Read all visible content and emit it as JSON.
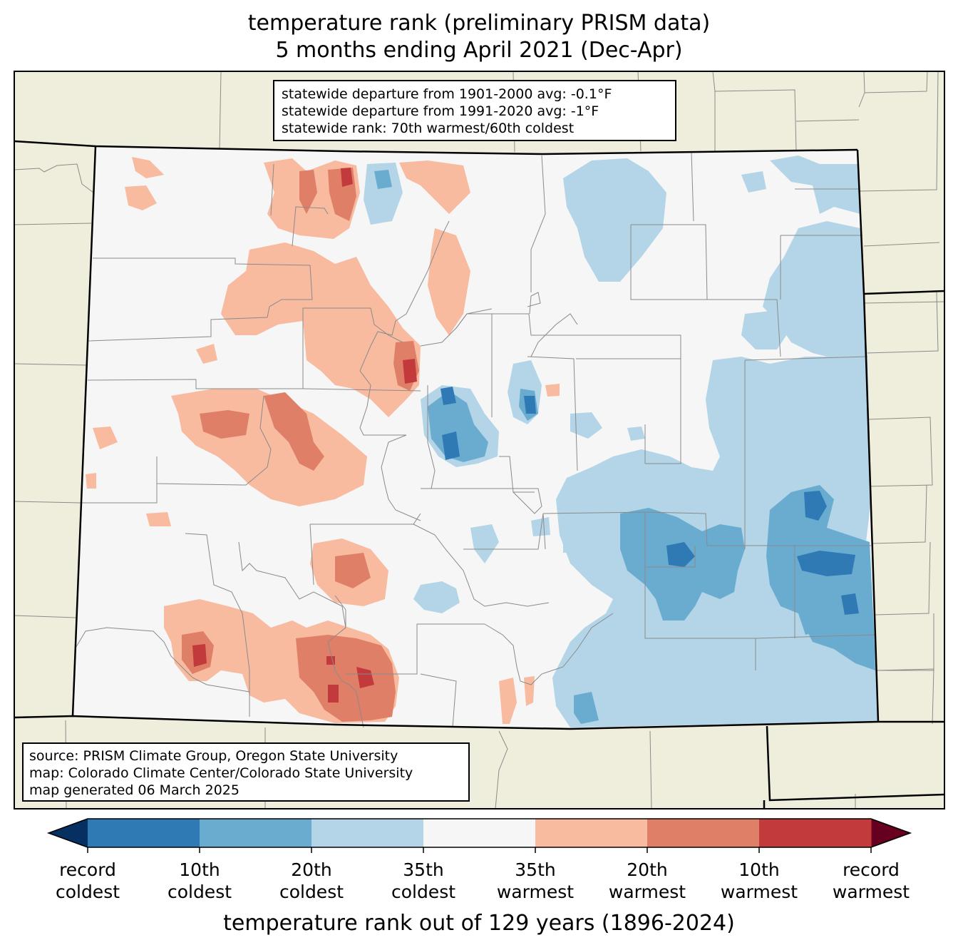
{
  "title": {
    "line1": "temperature rank (preliminary PRISM data)",
    "line2": "5 months ending April 2021 (Dec-Apr)"
  },
  "stats": {
    "line1": "statewide departure from 1901-2000 avg: -0.1°F",
    "line2": "statewide departure from 1991-2020 avg: -1°F",
    "line3": "statewide rank: 70th warmest/60th coldest"
  },
  "source": {
    "line1": "source: PRISM Climate Group, Oregon State University",
    "line2": "map: Colorado Climate Center/Colorado State University",
    "line3": "map generated 06 March 2025"
  },
  "colorbar": {
    "title": "temperature rank out of 129 years (1896-2024)",
    "under_color": "#053061",
    "over_color": "#67001f",
    "colors": [
      "#2f79b5",
      "#6aacd0",
      "#b3d5e7",
      "#f6f6f6",
      "#f8bba0",
      "#e07f67",
      "#c23a3c"
    ],
    "ticks": [
      {
        "line1": "record",
        "line2": "coldest"
      },
      {
        "line1": "10th",
        "line2": "coldest"
      },
      {
        "line1": "20th",
        "line2": "coldest"
      },
      {
        "line1": "35th",
        "line2": "coldest"
      },
      {
        "line1": "35th",
        "line2": "warmest"
      },
      {
        "line1": "20th",
        "line2": "warmest"
      },
      {
        "line1": "10th",
        "line2": "warmest"
      },
      {
        "line1": "record",
        "line2": "warmest"
      }
    ]
  },
  "map": {
    "land_color": "#efeedc",
    "state_fill": "#f6f6f6",
    "colors": {
      "cold_35": "#b3d5e7",
      "cold_20": "#6aacd0",
      "cold_10": "#2f79b5",
      "warm_35": "#f8bba0",
      "warm_20": "#e07f67",
      "warm_10": "#c23a3c"
    }
  }
}
